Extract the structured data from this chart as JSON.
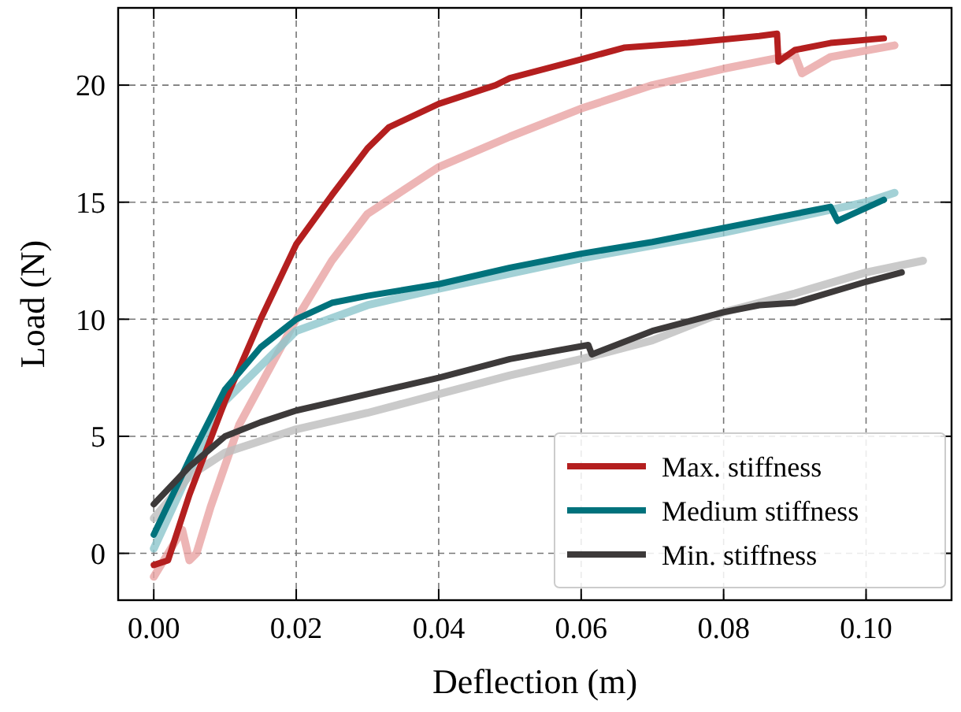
{
  "chart_data": {
    "type": "line",
    "xlabel": "Deflection (m)",
    "ylabel": "Load (N)",
    "xlim": [
      -0.005,
      0.112
    ],
    "ylim": [
      -2,
      23.3
    ],
    "xticks": [
      {
        "value": 0,
        "label": "0.00"
      },
      {
        "value": 0.02,
        "label": "0.02"
      },
      {
        "value": 0.04,
        "label": "0.04"
      },
      {
        "value": 0.06,
        "label": "0.06"
      },
      {
        "value": 0.08,
        "label": "0.08"
      },
      {
        "value": 0.1,
        "label": "0.10"
      }
    ],
    "yticks": [
      0,
      5,
      10,
      15,
      20
    ],
    "grid": true,
    "legend": "bottom right",
    "line_style": "solid",
    "marker": "none",
    "series": [
      {
        "color": "#e8a3a3",
        "x": [
          0,
          0.004,
          0.005,
          0.006,
          0.008,
          0.012,
          0.02,
          0.025,
          0.03,
          0.04,
          0.05,
          0.06,
          0.07,
          0.08,
          0.09,
          0.091,
          0.095,
          0.104
        ],
        "values": [
          -1,
          1,
          -0.3,
          0,
          2,
          5.5,
          10,
          12.5,
          14.5,
          16.5,
          17.8,
          19,
          20,
          20.7,
          21.3,
          20.5,
          21.2,
          21.7
        ]
      },
      {
        "color": "#8cc6cc",
        "x": [
          0,
          0.005,
          0.01,
          0.02,
          0.03,
          0.04,
          0.06,
          0.08,
          0.1,
          0.104
        ],
        "values": [
          0.2,
          3.5,
          6.5,
          9.5,
          10.6,
          11.3,
          12.6,
          13.7,
          15,
          15.4
        ]
      },
      {
        "color": "#bdbdbd",
        "x": [
          0,
          0.005,
          0.01,
          0.02,
          0.03,
          0.04,
          0.05,
          0.06,
          0.07,
          0.08,
          0.09,
          0.1,
          0.108
        ],
        "values": [
          1.5,
          3.3,
          4.3,
          5.3,
          6,
          6.8,
          7.6,
          8.3,
          9.1,
          10.3,
          11.1,
          12,
          12.5
        ]
      },
      {
        "name": "Max. stiffness",
        "color": "#b41f1f",
        "x": [
          0,
          0.002,
          0.005,
          0.01,
          0.015,
          0.02,
          0.025,
          0.03,
          0.033,
          0.04,
          0.048,
          0.05,
          0.06,
          0.066,
          0.075,
          0.085,
          0.0875,
          0.0877,
          0.09,
          0.095,
          0.1025
        ],
        "values": [
          -0.5,
          -0.3,
          2.5,
          6.5,
          10,
          13.2,
          15.3,
          17.3,
          18.2,
          19.2,
          20,
          20.3,
          21.1,
          21.6,
          21.8,
          22.1,
          22.2,
          21,
          21.5,
          21.8,
          22
        ]
      },
      {
        "name": "Medium stiffness",
        "color": "#00727c",
        "x": [
          0,
          0.005,
          0.01,
          0.015,
          0.02,
          0.025,
          0.03,
          0.04,
          0.05,
          0.06,
          0.07,
          0.08,
          0.09,
          0.095,
          0.096,
          0.1025
        ],
        "values": [
          0.8,
          4,
          7,
          8.8,
          10,
          10.7,
          11,
          11.5,
          12.2,
          12.8,
          13.3,
          13.9,
          14.5,
          14.8,
          14.2,
          15.1
        ]
      },
      {
        "name": "Min. stiffness",
        "color": "#3d3a3a",
        "x": [
          0,
          0.005,
          0.01,
          0.015,
          0.02,
          0.03,
          0.04,
          0.05,
          0.061,
          0.0615,
          0.07,
          0.08,
          0.085,
          0.09,
          0.1,
          0.105
        ],
        "values": [
          2.1,
          3.7,
          5,
          5.6,
          6.1,
          6.8,
          7.5,
          8.3,
          8.9,
          8.5,
          9.5,
          10.3,
          10.6,
          10.7,
          11.6,
          12
        ]
      }
    ]
  }
}
